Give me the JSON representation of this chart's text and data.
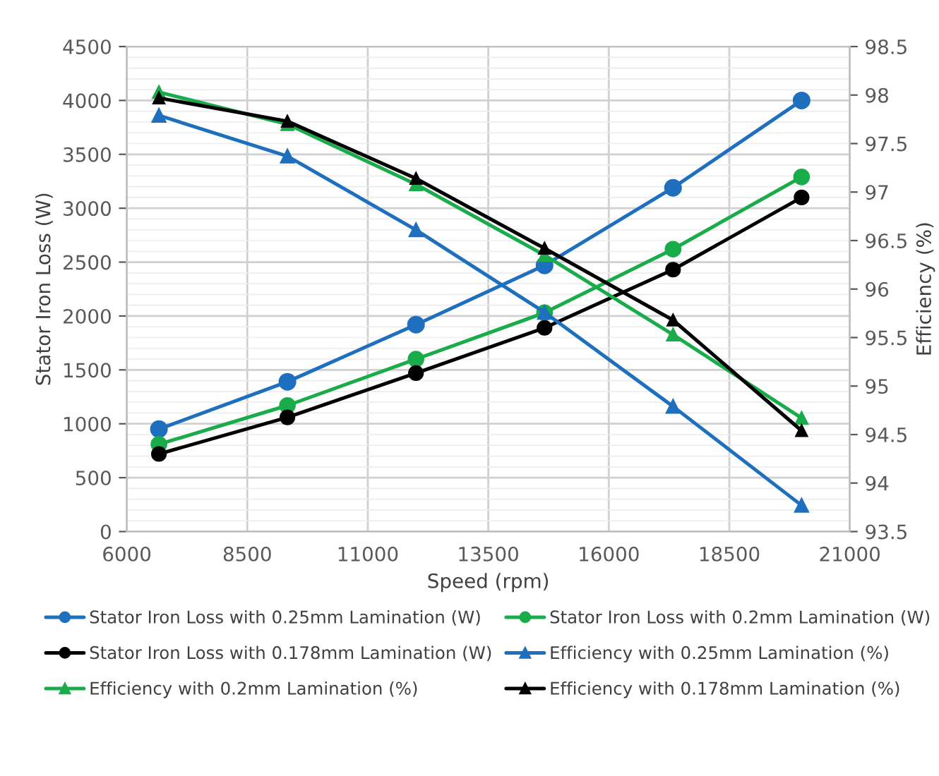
{
  "chart_data": {
    "type": "line",
    "xlabel": "Speed (rpm)",
    "ylabel": "Stator Iron Loss (W)",
    "y2label": "Efficiency (%)",
    "x": [
      6667,
      9333,
      12000,
      14667,
      17333,
      20000
    ],
    "xlim": [
      6000,
      21000
    ],
    "xticks": [
      6000,
      8500,
      11000,
      13500,
      16000,
      18500,
      21000
    ],
    "ylim": [
      0,
      4500
    ],
    "yticks": [
      0,
      500,
      1000,
      1500,
      2000,
      2500,
      3000,
      3500,
      4000,
      4500
    ],
    "y2lim": [
      93.5,
      98.5
    ],
    "y2ticks": [
      93.5,
      94,
      94.5,
      95,
      95.5,
      96,
      96.5,
      97,
      97.5,
      98,
      98.5
    ],
    "grid": true,
    "legend": "bottom",
    "line_style": "solid",
    "series": [
      {
        "name": "Stator Iron Loss with 0.25mm Lamination (W)",
        "color": "#1f6fbf",
        "marker": "circle",
        "values": [
          950,
          1390,
          1920,
          2470,
          3190,
          4000
        ]
      },
      {
        "name": "Stator Iron Loss with 0.2mm Lamination (W)",
        "color": "#1aab4b",
        "marker": "circle",
        "values": [
          810,
          1170,
          1600,
          2030,
          2620,
          3290
        ]
      },
      {
        "name": "Stator Iron Loss with 0.178mm Lamination (W)",
        "color": "#000000",
        "marker": "circle",
        "values": [
          720,
          1060,
          1470,
          1890,
          2430,
          3100
        ]
      },
      {
        "name": "Efficiency with 0.25mm Lamination (%)",
        "color": "#1f6fbf",
        "marker": "triangle",
        "axis": "y2",
        "values": [
          97.79,
          97.37,
          96.61,
          95.76,
          94.79,
          93.77
        ]
      },
      {
        "name": "Efficiency with 0.2mm Lamination (%)",
        "color": "#1aab4b",
        "marker": "triangle",
        "axis": "y2",
        "values": [
          98.03,
          97.7,
          97.08,
          96.35,
          95.53,
          94.67
        ]
      },
      {
        "name": "Efficiency with 0.178mm Lamination (%)",
        "color": "#000000",
        "marker": "triangle",
        "axis": "y2",
        "values": [
          97.97,
          97.73,
          97.14,
          96.42,
          95.68,
          94.54
        ]
      }
    ]
  }
}
